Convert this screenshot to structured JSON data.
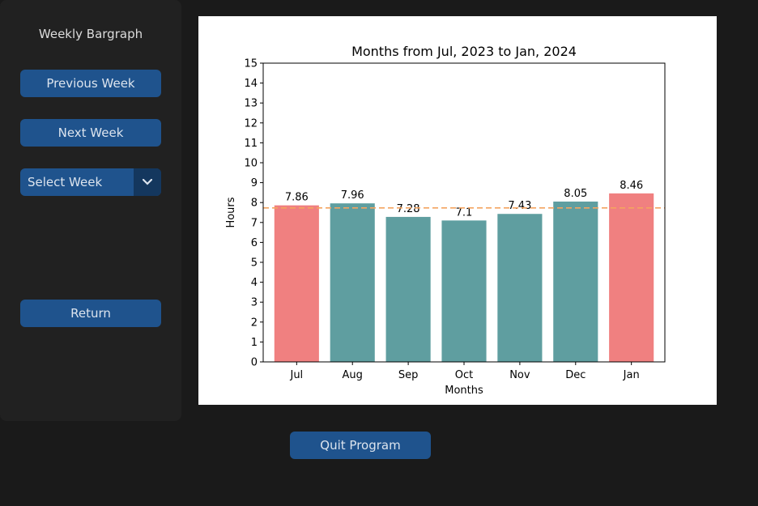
{
  "sidebar": {
    "title": "Weekly Bargraph",
    "previous_label": "Previous Week",
    "next_label": "Next Week",
    "select_value": "Select Week",
    "return_label": "Return"
  },
  "footer": {
    "quit_label": "Quit Program"
  },
  "colors": {
    "highlight_bar": "#f08080",
    "normal_bar": "#5f9ea0",
    "average_line": "#f4a460"
  },
  "chart_data": {
    "type": "bar",
    "title": "Months from Jul, 2023 to Jan, 2024",
    "xlabel": "Months",
    "ylabel": "Hours",
    "categories": [
      "Jul",
      "Aug",
      "Sep",
      "Oct",
      "Nov",
      "Dec",
      "Jan"
    ],
    "values": [
      7.86,
      7.96,
      7.28,
      7.1,
      7.43,
      8.05,
      8.46
    ],
    "value_labels": [
      "7.86",
      "7.96",
      "7.28",
      "7.1",
      "7.43",
      "8.05",
      "8.46"
    ],
    "highlighted": [
      true,
      false,
      false,
      false,
      false,
      false,
      true
    ],
    "average_line": 7.73,
    "ylim": [
      0,
      15
    ],
    "yticks": [
      0,
      1,
      2,
      3,
      4,
      5,
      6,
      7,
      8,
      9,
      10,
      11,
      12,
      13,
      14,
      15
    ],
    "grid": false
  }
}
